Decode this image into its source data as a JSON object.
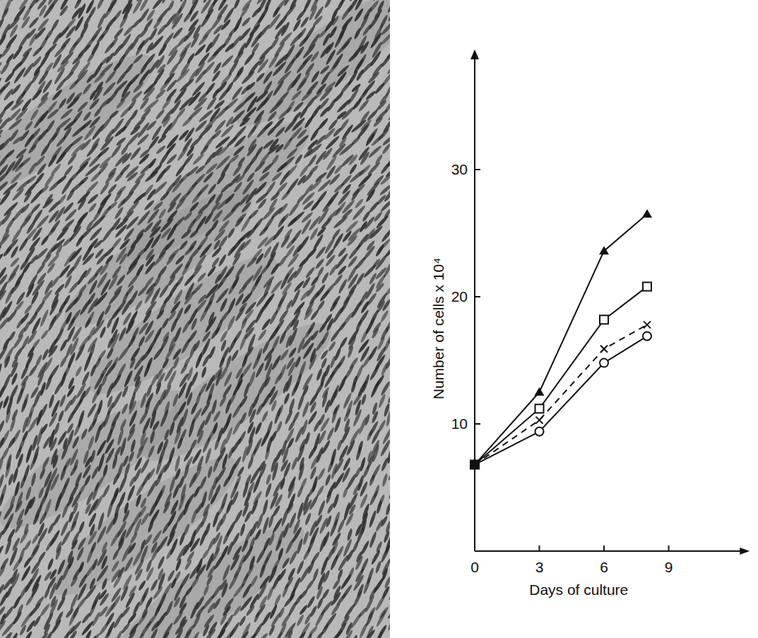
{
  "chart_data": {
    "type": "line",
    "x_label": "Days of culture",
    "y_label": "Number of cells x 10⁴",
    "x": [
      0,
      3,
      6,
      8
    ],
    "series": [
      {
        "color": "#111111",
        "marker": "triangle",
        "line_style": "solid",
        "values": [
          6.8,
          12.5,
          23.6,
          26.5
        ]
      },
      {
        "color": "#111111",
        "marker": "square",
        "line_style": "solid",
        "values": [
          6.8,
          11.2,
          18.2,
          20.8
        ]
      },
      {
        "color": "#111111",
        "marker": "x",
        "line_style": "dashed",
        "values": [
          6.8,
          10.3,
          15.9,
          17.8
        ]
      },
      {
        "color": "#111111",
        "marker": "circle",
        "line_style": "solid",
        "values": [
          6.8,
          9.4,
          14.8,
          16.9
        ]
      }
    ],
    "xlim": [
      0,
      12.5
    ],
    "xticks": [
      0,
      3,
      6,
      9
    ],
    "ylim": [
      0,
      39
    ],
    "yticks": [
      10,
      20,
      30
    ],
    "grid": false
  }
}
